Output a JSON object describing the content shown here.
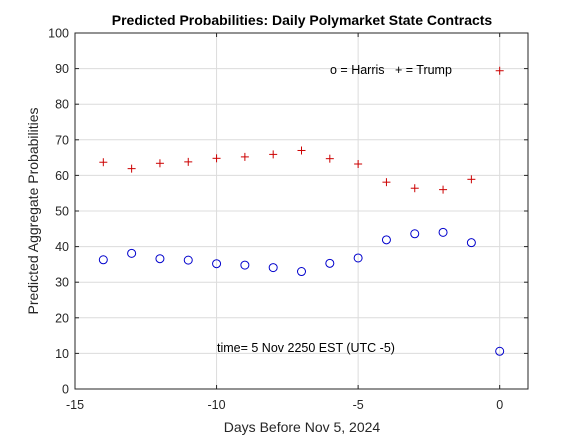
{
  "chart_data": {
    "type": "scatter",
    "title": "Predicted Probabilities:  Daily Polymarket State Contracts",
    "xlabel": "Days Before Nov 5, 2024",
    "ylabel": "Predicted Aggregate Probabilities",
    "xlim": [
      -15,
      1
    ],
    "ylim": [
      0,
      100
    ],
    "xticks": [
      -15,
      -10,
      -5,
      0
    ],
    "yticks": [
      0,
      10,
      20,
      30,
      40,
      50,
      60,
      70,
      80,
      90,
      100
    ],
    "grid": true,
    "legend_text": "o = Harris   + = Trump",
    "annotation": "time= 5 Nov 2250 EST (UTC -5)",
    "series": [
      {
        "name": "Harris",
        "marker": "o",
        "color": "#0000cc",
        "x": [
          -14,
          -13,
          -12,
          -11,
          -10,
          -9,
          -8,
          -7,
          -6,
          -5,
          -4,
          -3,
          -2,
          -1,
          0
        ],
        "y": [
          36.3,
          38.1,
          36.6,
          36.2,
          35.2,
          34.8,
          34.1,
          33.0,
          35.3,
          36.8,
          41.9,
          43.6,
          44.0,
          41.1,
          10.6
        ]
      },
      {
        "name": "Trump",
        "marker": "+",
        "color": "#cc0000",
        "x": [
          -14,
          -13,
          -12,
          -11,
          -10,
          -9,
          -8,
          -7,
          -6,
          -5,
          -4,
          -3,
          -2,
          -1,
          0
        ],
        "y": [
          63.7,
          61.9,
          63.4,
          63.8,
          64.8,
          65.2,
          65.9,
          67.0,
          64.7,
          63.2,
          58.1,
          56.4,
          56.0,
          58.9,
          89.4
        ]
      }
    ]
  }
}
